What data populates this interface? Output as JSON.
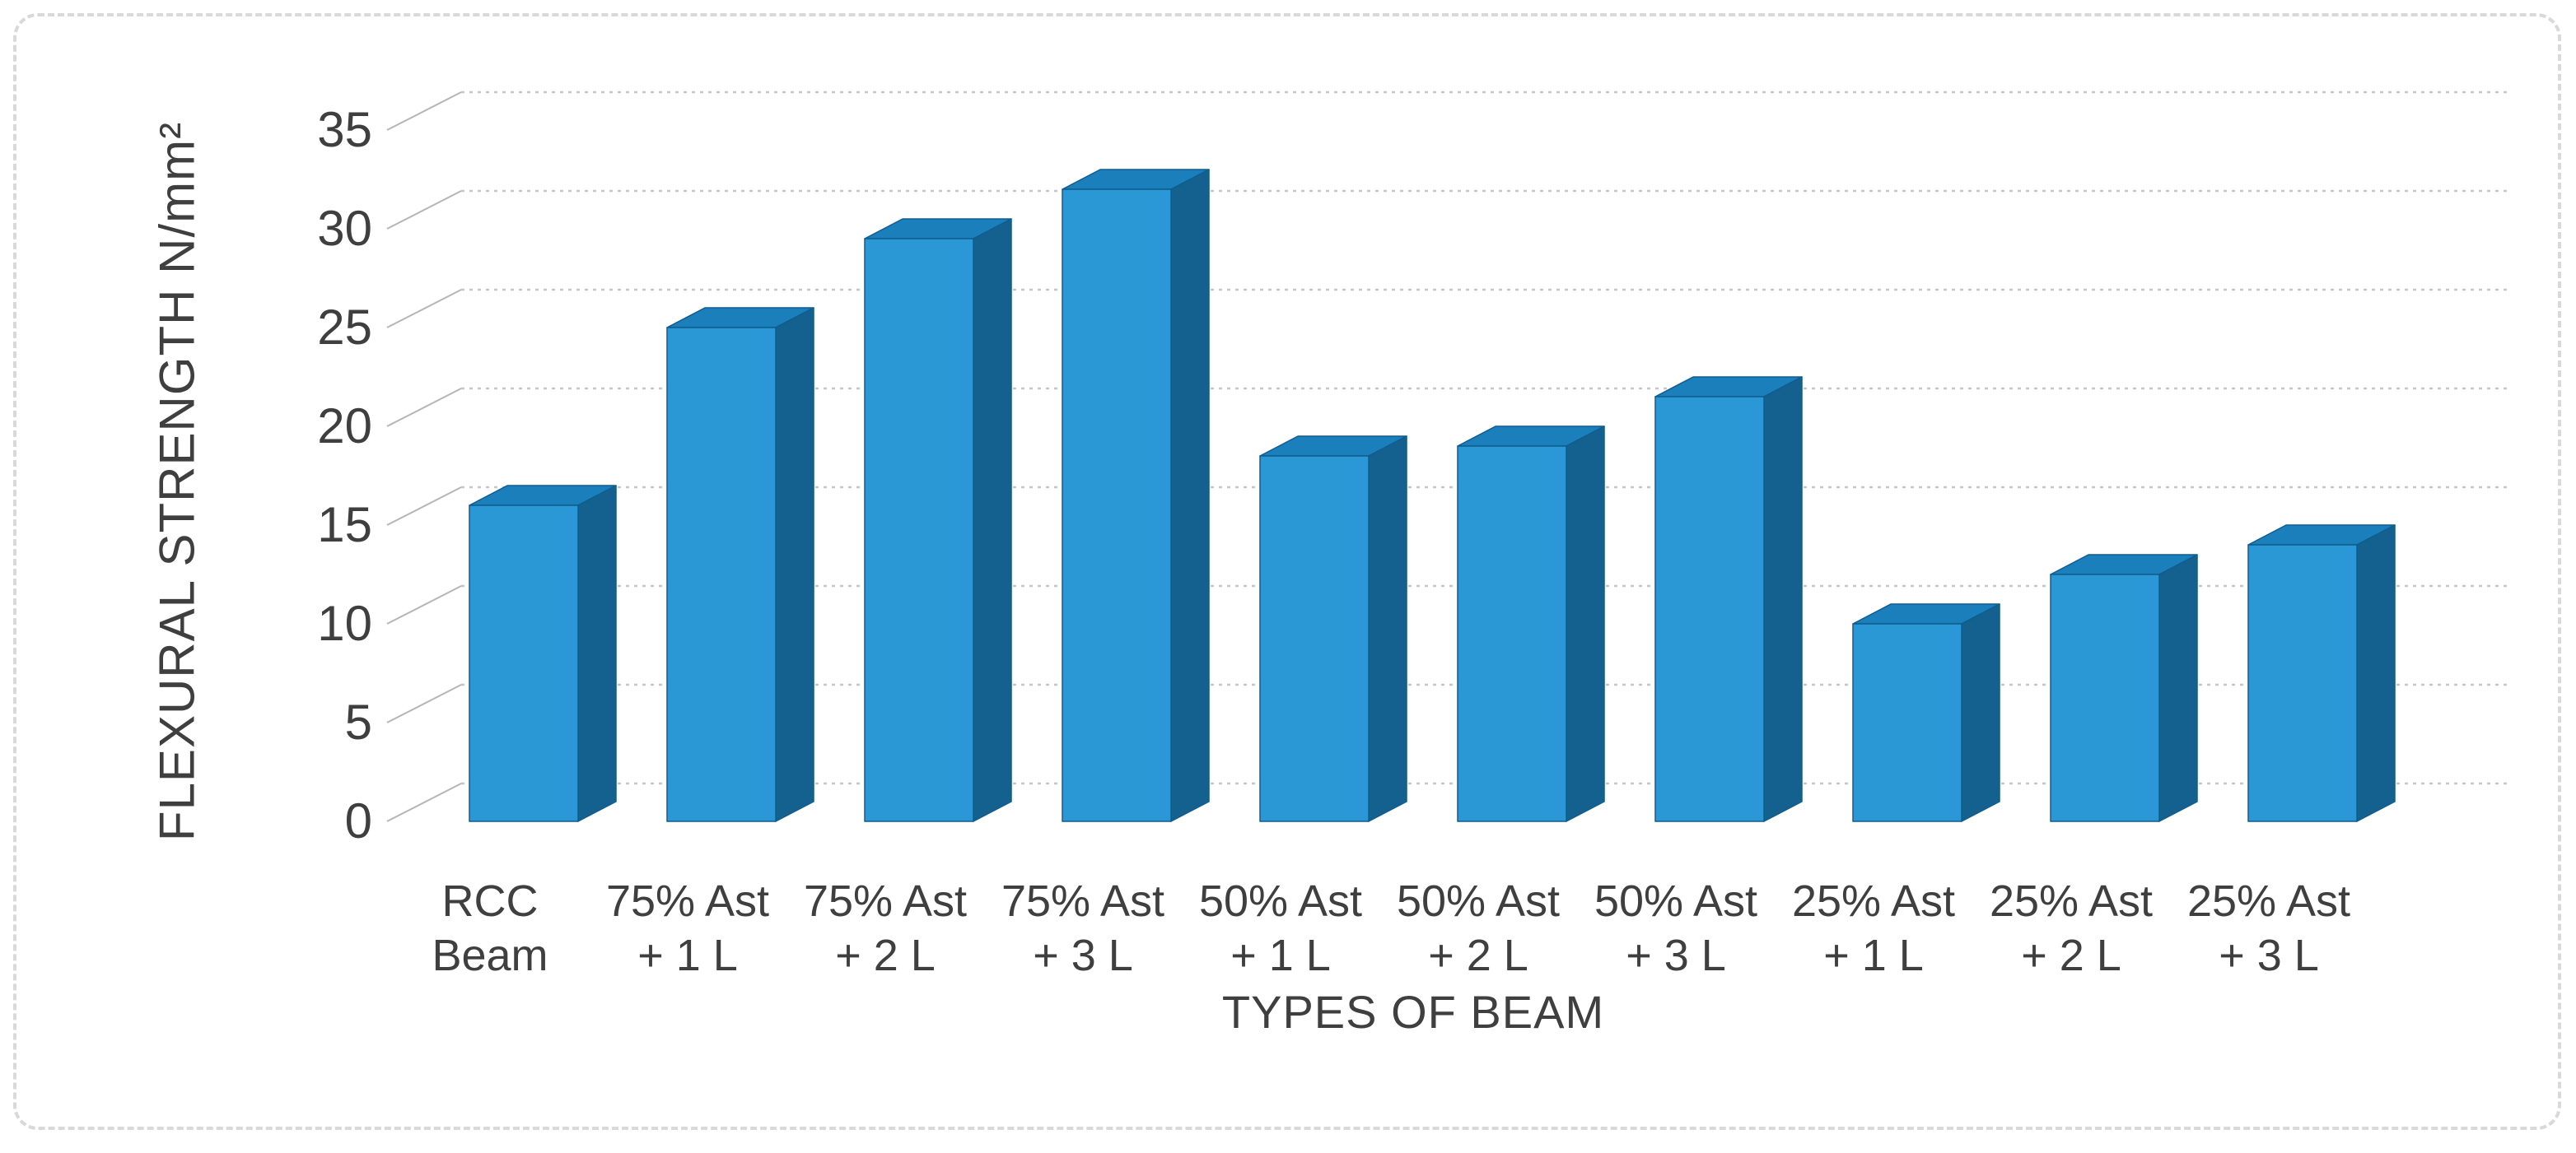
{
  "figure": {
    "background_color": "#ffffff",
    "frame_border_color": "#d9d9d9",
    "frame_border_style": "dashed"
  },
  "chart_data": {
    "type": "bar",
    "variant": "3d-clustered-column",
    "title": "",
    "xlabel": "TYPES OF BEAM",
    "ylabel": "FLEXURAL STRENGTH N/mm²",
    "categories": [
      "RCC\nBeam",
      "75% Ast\n+ 1 L",
      "75% Ast\n+ 2 L",
      "75% Ast\n+ 3 L",
      "50% Ast\n+ 1 L",
      "50% Ast\n+ 2 L",
      "50% Ast\n+ 3 L",
      "25% Ast\n+ 1 L",
      "25% Ast\n+ 2 L",
      "25% Ast\n+ 3 L"
    ],
    "values": [
      16,
      25,
      29.5,
      32,
      18.5,
      19,
      21.5,
      10,
      12.5,
      14
    ],
    "ylim": [
      0,
      35
    ],
    "ytick_interval": 5,
    "ytick_labels": [
      "0",
      "5",
      "10",
      "15",
      "20",
      "25",
      "30",
      "35"
    ],
    "grid": true,
    "legend": false,
    "data_labels": false,
    "colors": {
      "bar_front": "#2b98d6",
      "bar_top": "#1a7fba",
      "bar_side": "#14608f",
      "bar_edge": "#0f5c8f",
      "gridline": "#c6c6c6",
      "grid_diagonal": "#b5b5b5",
      "axis_text": "#3f3f3f"
    }
  }
}
